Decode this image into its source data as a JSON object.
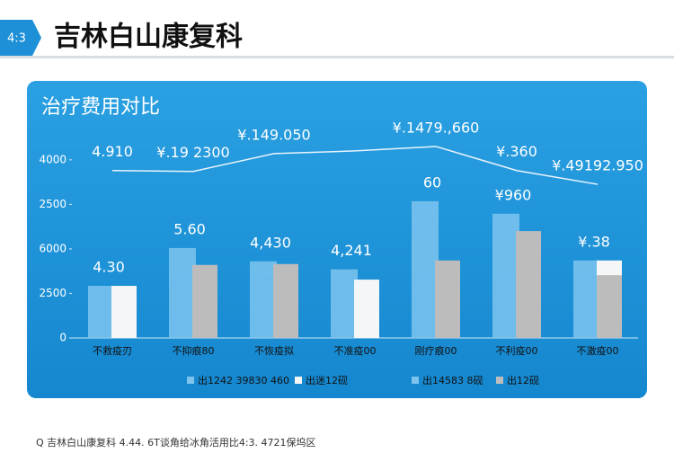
{
  "slide": {
    "number": "4:3",
    "title": "吉林白山康复科",
    "footer": "Q 吉林白山康复科 4.44. 6T谈角给冰角活用比4:3. 4721保坞区"
  },
  "chart_data": {
    "type": "bar",
    "title": "治疗费用对比",
    "categories": [
      "不救疫刃",
      "不抑痕80",
      "不恢疫拟",
      "不准疫00",
      "刚疗痕00",
      "不利疫00",
      "不激疫00"
    ],
    "ylim": [
      0,
      4.4
    ],
    "yticks": [
      {
        "value": 0,
        "label": "0"
      },
      {
        "value": 1,
        "label": "2500"
      },
      {
        "value": 2,
        "label": "6000"
      },
      {
        "value": 3,
        "label": "2500"
      },
      {
        "value": 4,
        "label": "4000"
      }
    ],
    "series": [
      {
        "name": "出1242 39830 460",
        "kind": "back",
        "color": "#7cc4ee",
        "values": [
          1.17,
          2.02,
          1.72,
          1.54,
          3.07,
          2.79,
          1.74
        ],
        "value_labels": [
          "4.30",
          "5.60",
          "4,430",
          "4,241",
          "60",
          "¥960",
          "¥.38"
        ]
      },
      {
        "name": "出迷12砚",
        "kind": "front",
        "color": "#f4f6f8",
        "values": [
          1.17,
          null,
          null,
          1.31,
          null,
          null,
          1.74
        ]
      },
      {
        "name": "出14583 8砚",
        "kind": "line",
        "color": "#e8f4fc",
        "values": [
          3.76,
          3.74,
          4.14,
          4.2,
          4.3,
          3.76,
          3.45
        ],
        "value_labels": [
          "4.910",
          "¥.19 2300",
          "¥.149.050",
          null,
          "¥.1479.,660",
          "¥.360",
          "¥.49192.950"
        ]
      },
      {
        "name": "出12砚",
        "kind": "front",
        "color": "#bcbcbc",
        "values": [
          null,
          1.64,
          1.66,
          null,
          1.74,
          2.4,
          1.41
        ]
      }
    ]
  }
}
